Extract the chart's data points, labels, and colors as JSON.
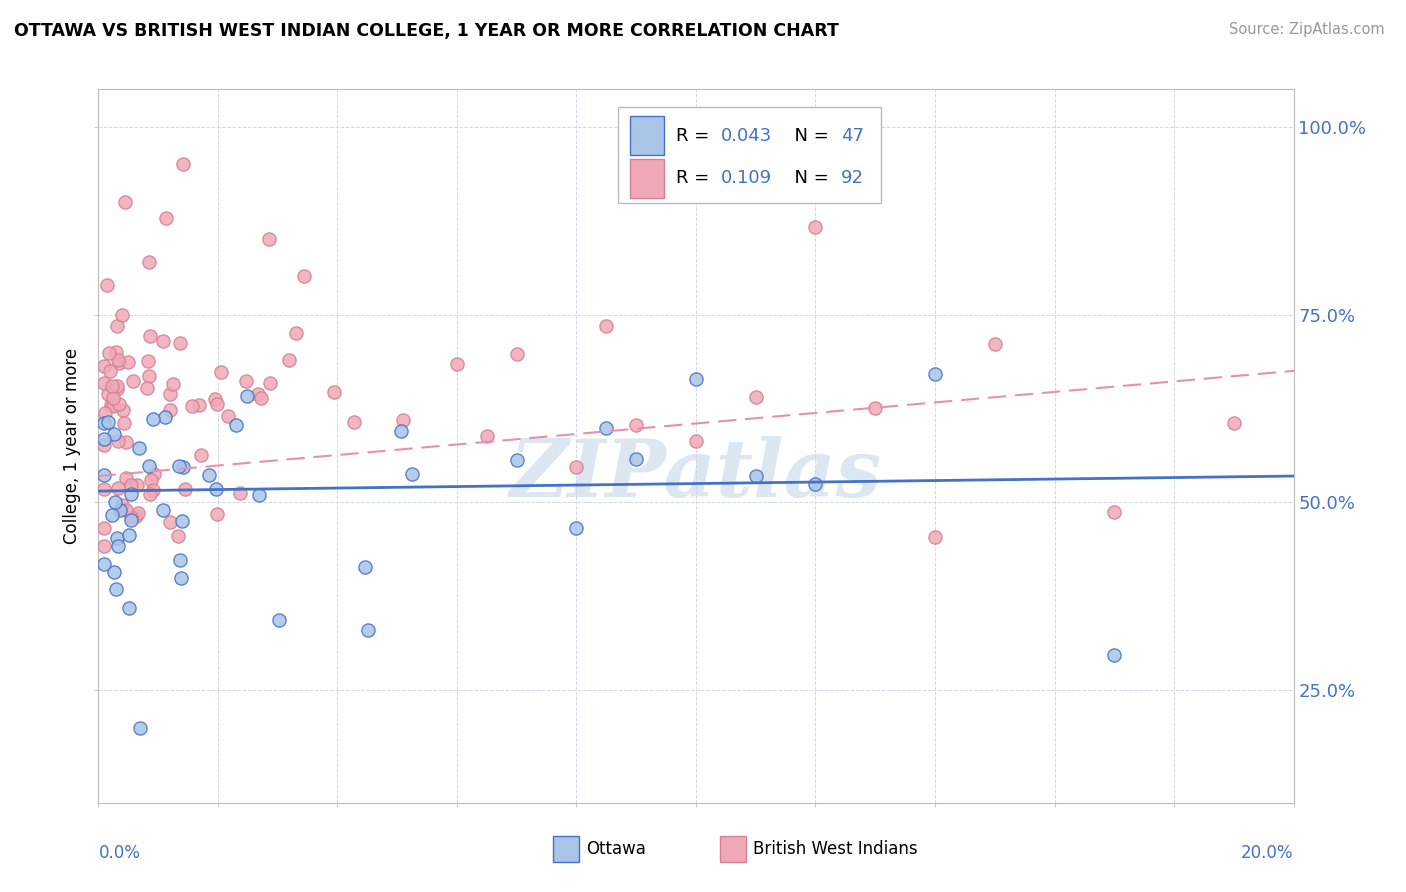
{
  "title": "OTTAWA VS BRITISH WEST INDIAN COLLEGE, 1 YEAR OR MORE CORRELATION CHART",
  "source": "Source: ZipAtlas.com",
  "ylabel": "College, 1 year or more",
  "yticks": [
    "25.0%",
    "50.0%",
    "75.0%",
    "100.0%"
  ],
  "ytick_vals": [
    0.25,
    0.5,
    0.75,
    1.0
  ],
  "xlim": [
    0.0,
    0.2
  ],
  "ylim": [
    0.1,
    1.05
  ],
  "color_ottawa": "#aac4e8",
  "color_bwi": "#f0a8b8",
  "color_ottawa_edge": "#4472c4",
  "color_bwi_edge": "#d48090",
  "color_ottawa_line": "#4472c4",
  "color_bwi_line": "#e890a8",
  "watermark": "ZIPatlas",
  "watermark_color": "#c0d4e8"
}
